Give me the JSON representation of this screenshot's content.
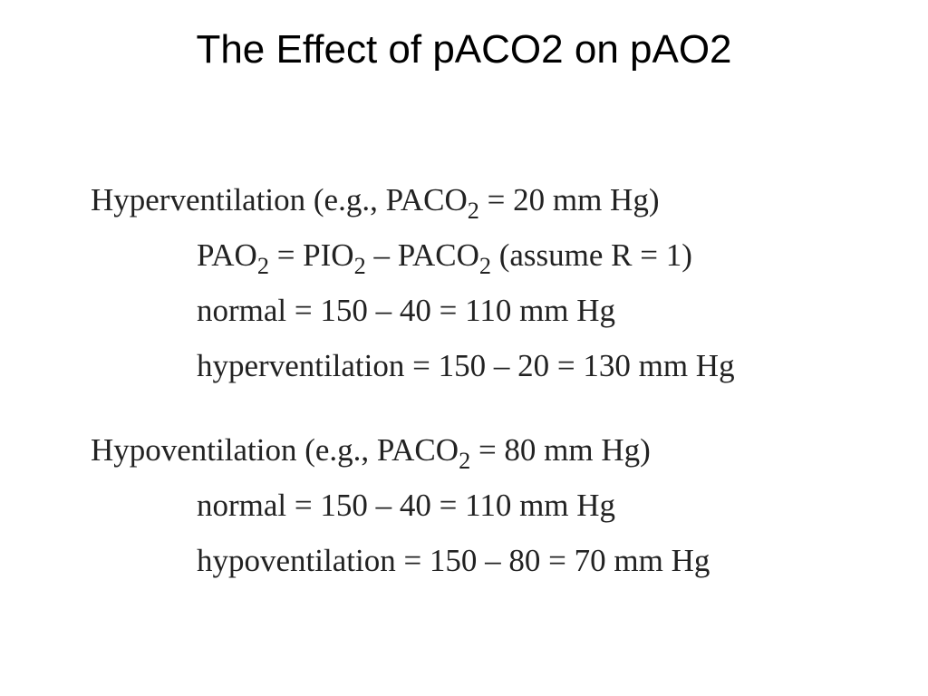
{
  "title": "The Effect of pACO2 on pAO2",
  "sections": [
    {
      "heading": [
        "Hyperventilation (e.g., PACO",
        {
          "sub": "2"
        },
        " = 20 mm Hg)"
      ],
      "lines": [
        [
          "PAO",
          {
            "sub": "2"
          },
          " = PIO",
          {
            "sub": "2"
          },
          " – PACO",
          {
            "sub": "2"
          },
          " (assume R = 1)"
        ],
        [
          "normal = 150 – 40 = 110 mm Hg"
        ],
        [
          "hyperventilation = 150 – 20 = 130 mm Hg"
        ]
      ]
    },
    {
      "heading": [
        "Hypoventilation (e.g., PACO",
        {
          "sub": "2"
        },
        " = 80 mm Hg)"
      ],
      "lines": [
        [
          "normal = 150 – 40 = 110 mm Hg"
        ],
        [
          "hypoventilation = 150 – 80 = 70 mm Hg"
        ]
      ]
    }
  ]
}
